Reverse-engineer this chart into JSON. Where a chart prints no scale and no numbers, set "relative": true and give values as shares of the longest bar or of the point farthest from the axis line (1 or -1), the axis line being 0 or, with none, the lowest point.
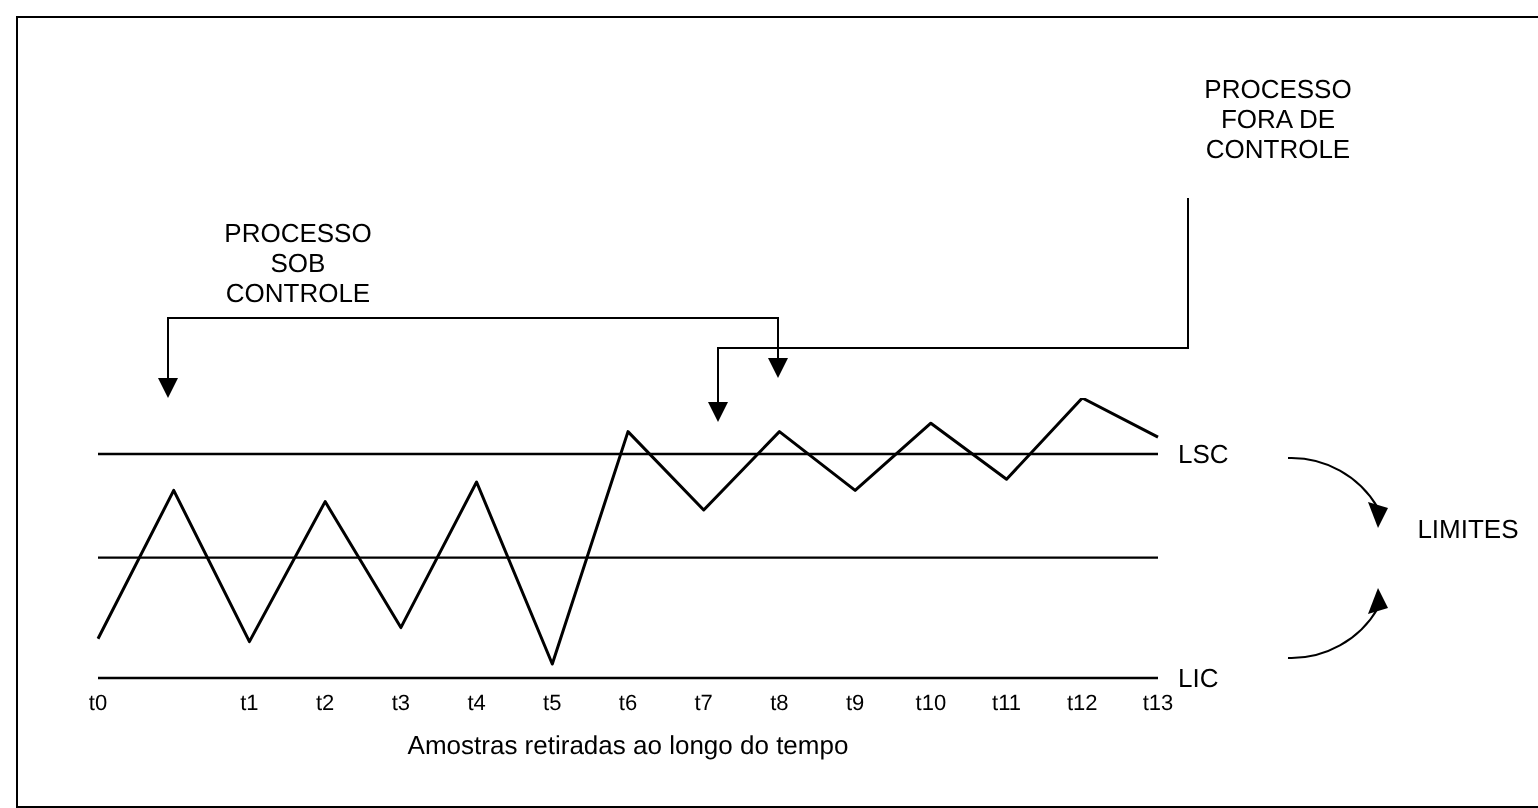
{
  "chart_data": {
    "type": "line",
    "relative": true,
    "xlabel": "Amostras retiradas ao longo do tempo",
    "categories": [
      "t0",
      null,
      "t1",
      "t2",
      "t3",
      "t4",
      "t5",
      "t6",
      "t7",
      "t8",
      "t9",
      "t10",
      "t11",
      "t12",
      "t13"
    ],
    "series": [
      {
        "color": "#000000",
        "values": [
          0.14,
          0.67,
          0.13,
          0.63,
          0.18,
          0.7,
          0.05,
          0.88,
          0.6,
          0.88,
          0.67,
          0.91,
          0.71,
          1,
          0.86
        ]
      }
    ],
    "marker": "none",
    "ref_lines": [
      {
        "axis": "y",
        "value": 0.8,
        "label": "LSC",
        "color": "#000000"
      },
      {
        "axis": "y",
        "value": 0.43,
        "label": null,
        "color": "#000000"
      },
      {
        "axis": "y",
        "value": 0,
        "label": "LIC",
        "color": "#000000"
      }
    ],
    "annotations": [
      "PROCESSO SOB CONTROLE",
      "PROCESSO FORA DE CONTROLE",
      "LIMITES"
    ]
  }
}
